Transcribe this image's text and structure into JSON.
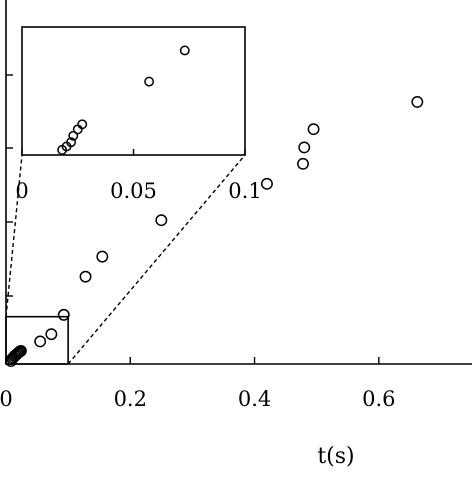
{
  "chart_data": [
    {
      "type": "scatter",
      "title": "",
      "xlabel": "t(s)",
      "ylabel": "",
      "xlim": [
        0,
        0.75
      ],
      "ylim": [
        0,
        1.0
      ],
      "x_ticks": [
        0,
        0.2,
        0.4,
        0.6
      ],
      "x_tick_labels": [
        "0",
        "0.2",
        "0.4",
        "0.6"
      ],
      "grid": false,
      "marker": "open-circle",
      "series": [
        {
          "points": [
            {
              "x": 0.008,
              "y": 0.008
            },
            {
              "x": 0.01,
              "y": 0.014
            },
            {
              "x": 0.012,
              "y": 0.018
            },
            {
              "x": 0.014,
              "y": 0.022
            },
            {
              "x": 0.016,
              "y": 0.025
            },
            {
              "x": 0.018,
              "y": 0.028
            },
            {
              "x": 0.02,
              "y": 0.031
            },
            {
              "x": 0.022,
              "y": 0.034
            },
            {
              "x": 0.024,
              "y": 0.036
            },
            {
              "x": 0.055,
              "y": 0.062
            },
            {
              "x": 0.073,
              "y": 0.082
            },
            {
              "x": 0.093,
              "y": 0.135
            },
            {
              "x": 0.128,
              "y": 0.24
            },
            {
              "x": 0.155,
              "y": 0.295
            },
            {
              "x": 0.25,
              "y": 0.395
            },
            {
              "x": 0.42,
              "y": 0.495
            },
            {
              "x": 0.478,
              "y": 0.55
            },
            {
              "x": 0.48,
              "y": 0.595
            },
            {
              "x": 0.495,
              "y": 0.645
            },
            {
              "x": 0.662,
              "y": 0.72
            }
          ]
        }
      ]
    },
    {
      "type": "scatter",
      "role": "inset",
      "xlim": [
        0,
        0.1
      ],
      "ylim": [
        0,
        0.3
      ],
      "x_ticks": [
        0,
        0.05,
        0.1
      ],
      "x_tick_labels": [
        "0",
        "0.05",
        "0.1"
      ],
      "marker": "open-circle",
      "series": [
        {
          "points": [
            {
              "x": 0.018,
              "y": 0.012
            },
            {
              "x": 0.02,
              "y": 0.02
            },
            {
              "x": 0.022,
              "y": 0.03
            },
            {
              "x": 0.023,
              "y": 0.045
            },
            {
              "x": 0.025,
              "y": 0.06
            },
            {
              "x": 0.027,
              "y": 0.072
            },
            {
              "x": 0.057,
              "y": 0.172
            },
            {
              "x": 0.073,
              "y": 0.245
            }
          ]
        }
      ]
    }
  ]
}
